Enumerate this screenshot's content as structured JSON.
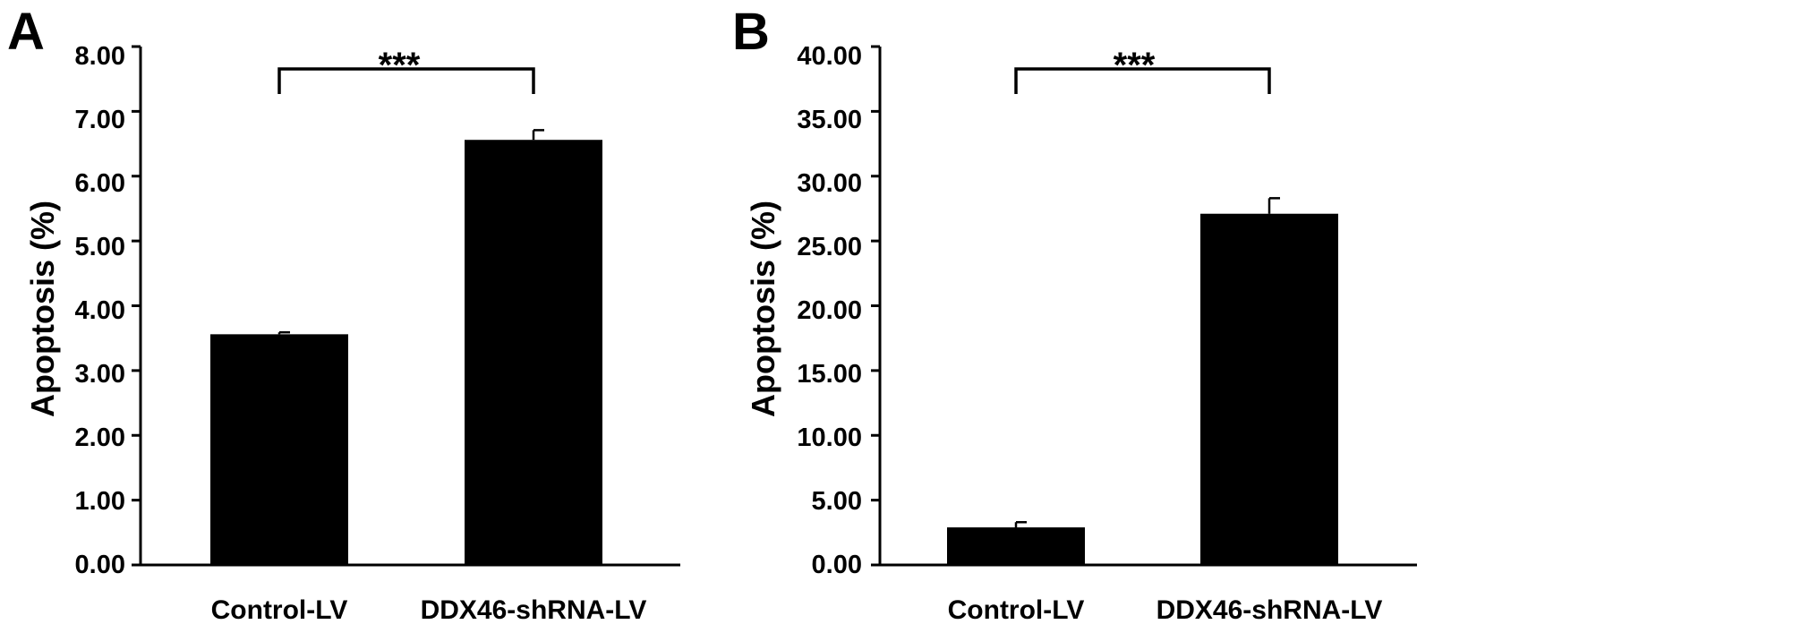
{
  "figure": {
    "panels": [
      {
        "panel_label": "A",
        "ylabel": "Apoptosis (%)",
        "significance": "***",
        "y_tick_labels": [
          "0.00",
          "1.00",
          "2.00",
          "3.00",
          "4.00",
          "5.00",
          "6.00",
          "7.00",
          "8.00"
        ],
        "category_labels": [
          "Control-LV",
          "DDX46-shRNA-LV"
        ]
      },
      {
        "panel_label": "B",
        "ylabel": "Apoptosis (%)",
        "significance": "***",
        "y_tick_labels": [
          "0.00",
          "5.00",
          "10.00",
          "15.00",
          "20.00",
          "25.00",
          "30.00",
          "35.00",
          "40.00"
        ],
        "category_labels": [
          "Control-LV",
          "DDX46-shRNA-LV"
        ]
      }
    ]
  },
  "chart_data": [
    {
      "type": "bar",
      "categories": [
        "Control-LV",
        "DDX46-shRNA-LV"
      ],
      "values": [
        3.56,
        6.56
      ],
      "errors": [
        0.03,
        0.15
      ],
      "ylabel": "Apoptosis (%)",
      "xlabel": "",
      "ylim": [
        0,
        8
      ],
      "yticks": [
        0,
        1,
        2,
        3,
        4,
        5,
        6,
        7,
        8
      ],
      "significance": "***",
      "bar_color": "#000000",
      "grid": false
    },
    {
      "type": "bar",
      "categories": [
        "Control-LV",
        "DDX46-shRNA-LV"
      ],
      "values": [
        2.9,
        27.1
      ],
      "errors": [
        0.4,
        1.2
      ],
      "ylabel": "Apoptosis (%)",
      "xlabel": "",
      "ylim": [
        0,
        40
      ],
      "yticks": [
        0,
        5,
        10,
        15,
        20,
        25,
        30,
        35,
        40
      ],
      "significance": "***",
      "bar_color": "#000000",
      "grid": false
    }
  ]
}
